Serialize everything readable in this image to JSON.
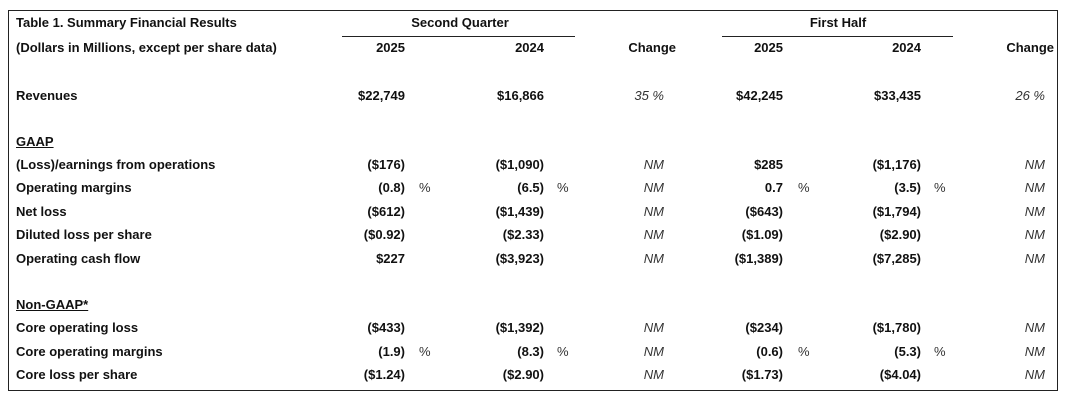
{
  "header": {
    "title": "Table 1. Summary Financial Results",
    "subtitle": "(Dollars in Millions, except per share data)",
    "groups": [
      "Second Quarter",
      "First Half"
    ],
    "columns": [
      "2025",
      "2024",
      "Change",
      "2025",
      "2024",
      "Change"
    ]
  },
  "rows": [
    {
      "label": "Revenues",
      "cells": [
        "$22,749",
        "$16,866",
        "35 %",
        "$42,245",
        "$33,435",
        "26 %"
      ]
    }
  ],
  "sections": [
    {
      "title": "GAAP",
      "rows": [
        {
          "label": "(Loss)/earnings from operations",
          "cells": [
            "($176)",
            "($1,090)",
            "NM",
            "$285",
            "($1,176)",
            "NM"
          ]
        },
        {
          "label": "Operating margins",
          "cells": [
            {
              "value": "(0.8)",
              "unit": "%"
            },
            {
              "value": "(6.5)",
              "unit": "%"
            },
            "NM",
            {
              "value": "0.7",
              "unit": "%"
            },
            {
              "value": "(3.5)",
              "unit": "%"
            },
            "NM"
          ]
        },
        {
          "label": "Net loss",
          "cells": [
            "($612)",
            "($1,439)",
            "NM",
            "($643)",
            "($1,794)",
            "NM"
          ]
        },
        {
          "label": "Diluted loss per share",
          "cells": [
            "($0.92)",
            "($2.33)",
            "NM",
            "($1.09)",
            "($2.90)",
            "NM"
          ]
        },
        {
          "label": "Operating cash flow",
          "cells": [
            "$227",
            "($3,923)",
            "NM",
            "($1,389)",
            "($7,285)",
            "NM"
          ]
        }
      ]
    },
    {
      "title": "Non-GAAP*",
      "rows": [
        {
          "label": "Core operating loss",
          "cells": [
            "($433)",
            "($1,392)",
            "NM",
            "($234)",
            "($1,780)",
            "NM"
          ]
        },
        {
          "label": "Core operating margins",
          "cells": [
            {
              "value": "(1.9)",
              "unit": "%"
            },
            {
              "value": "(8.3)",
              "unit": "%"
            },
            "NM",
            {
              "value": "(0.6)",
              "unit": "%"
            },
            {
              "value": "(5.3)",
              "unit": "%"
            },
            "NM"
          ]
        },
        {
          "label": "Core loss per share",
          "cells": [
            "($1.24)",
            "($2.90)",
            "NM",
            "($1.73)",
            "($4.04)",
            "NM"
          ]
        }
      ]
    }
  ]
}
